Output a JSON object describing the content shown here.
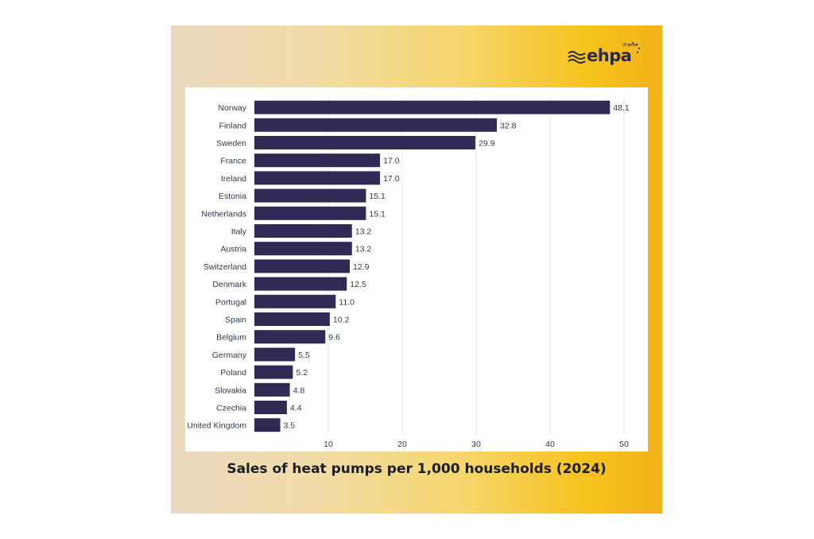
{
  "brand": {
    "name": "ehpa",
    "tagline": "20 years"
  },
  "chart_data": {
    "type": "bar",
    "orientation": "horizontal",
    "title": "Sales of heat pumps per 1,000 households (2024)",
    "xlabel": "",
    "ylabel": "",
    "xlim": [
      0,
      50
    ],
    "xticks": [
      10,
      20,
      30,
      40,
      50
    ],
    "grid": true,
    "bar_color": "#2f2b54",
    "categories": [
      "Norway",
      "Finland",
      "Sweden",
      "France",
      "Ireland",
      "Estonia",
      "Netherlands",
      "Italy",
      "Austria",
      "Switzerland",
      "Denmark",
      "Portugal",
      "Spain",
      "Belgium",
      "Germany",
      "Poland",
      "Slovakia",
      "Czechia",
      "United Kingdom"
    ],
    "values": [
      48.1,
      32.8,
      29.9,
      17.0,
      17.0,
      15.1,
      15.1,
      13.2,
      13.2,
      12.9,
      12.5,
      11.0,
      10.2,
      9.6,
      5.5,
      5.2,
      4.8,
      4.4,
      3.5
    ],
    "value_labels": [
      "48.1",
      "32.8",
      "29.9",
      "17.0",
      "17.0",
      "15.1",
      "15.1",
      "13.2",
      "13.2",
      "12.9",
      "12.5",
      "11.0",
      "10.2",
      "9.6",
      "5.5",
      "5.2",
      "4.8",
      "4.4",
      "3.5"
    ]
  }
}
